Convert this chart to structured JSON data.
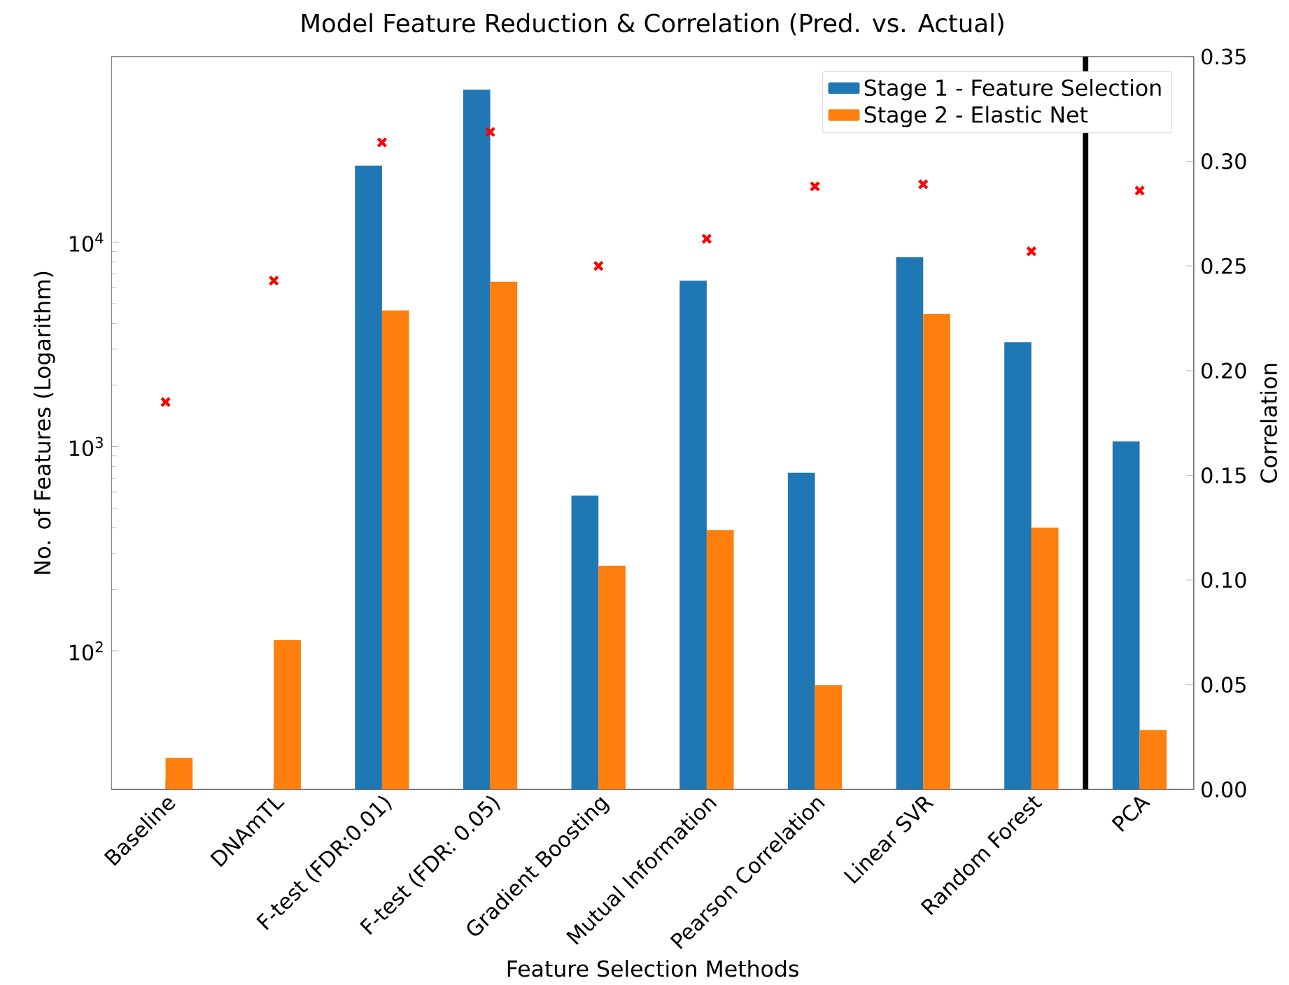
{
  "chart_data": {
    "type": "bar",
    "title": "Model Feature Reduction & Correlation (Pred. vs. Actual)",
    "xlabel": "Feature Selection Methods",
    "ylabel": "No. of Features (Logarithm)",
    "y2label": "Correlation",
    "categories": [
      "Baseline",
      "DNAmTL",
      "F-test (FDR:0.01)",
      "F-test (FDR: 0.05)",
      "Gradient Boosting",
      "Mutual Information",
      "Pearson Correlation",
      "Linear SVR",
      "Random Forest",
      "PCA"
    ],
    "log": "y",
    "ylim": [
      21,
      81000
    ],
    "yticks": [
      {
        "value": 100,
        "label": "10$^{2}$"
      },
      {
        "value": 1000,
        "label": "10$^{3}$"
      },
      {
        "value": 10000,
        "label": "10$^{4}$"
      }
    ],
    "y2lim": [
      0,
      0.35
    ],
    "y2ticks": [
      {
        "value": 0,
        "label": "0.00"
      },
      {
        "value": 0.05,
        "label": "0.05"
      },
      {
        "value": 0.1,
        "label": "0.10"
      },
      {
        "value": 0.15,
        "label": "0.15"
      },
      {
        "value": 0.2,
        "label": "0.20"
      },
      {
        "value": 0.25,
        "label": "0.25"
      },
      {
        "value": 0.3,
        "label": "0.30"
      },
      {
        "value": 0.35,
        "label": "0.35"
      }
    ],
    "legend": "top right",
    "series": [
      {
        "name": "Stage 1 - Feature Selection",
        "color": "#1f77b4",
        "values": [
          null,
          null,
          23700,
          55700,
          575,
          6480,
          745,
          8460,
          3240,
          1060
        ]
      },
      {
        "name": "Stage 2 - Elastic Net",
        "color": "#ff7f0e",
        "values": [
          30,
          113,
          4640,
          6400,
          261,
          390,
          68,
          4460,
          401,
          41
        ]
      },
      {
        "type": "scatter",
        "axis": "y2",
        "color": "#ff0000",
        "marker": "cross",
        "values": [
          0.185,
          0.243,
          0.309,
          0.314,
          0.25,
          0.263,
          0.288,
          0.289,
          0.257,
          0.286
        ]
      }
    ]
  }
}
